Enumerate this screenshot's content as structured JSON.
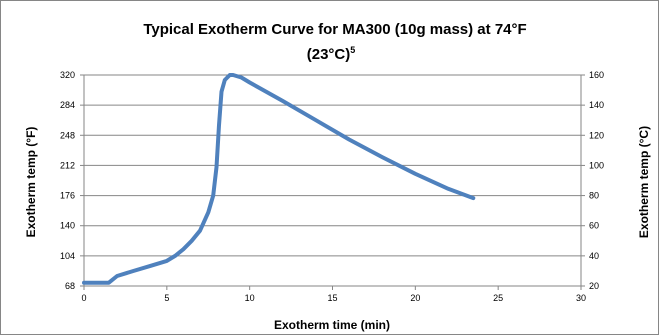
{
  "chart_data": {
    "type": "line",
    "title": "Typical Exotherm Curve for MA300 (10g mass) at 74°F (23°C)",
    "title_line1": "Typical Exotherm Curve for MA300 (10g mass) at 74°F",
    "title_line2": "(23°C)",
    "title_superscript": "5",
    "xlabel": "Exotherm time (min)",
    "ylabel": "Exotherm temp (°F)",
    "y2label": "Exotherm temp (°C)",
    "xlim": [
      0,
      30
    ],
    "ylim": [
      68,
      320
    ],
    "y2lim": [
      20,
      160
    ],
    "x_ticks": [
      "0",
      "5",
      "10",
      "15",
      "20",
      "25",
      "30"
    ],
    "y_ticks": [
      "68",
      "104",
      "140",
      "176",
      "212",
      "248",
      "284",
      "320"
    ],
    "y2_ticks": [
      "20",
      "40",
      "60",
      "80",
      "100",
      "120",
      "140",
      "160"
    ],
    "grid": true,
    "line_color": "#4f81bd",
    "series": [
      {
        "x": [
          0,
          0.5,
          1,
          1.5,
          2,
          3,
          4,
          5,
          5.5,
          6,
          6.5,
          7,
          7.5,
          7.8,
          8,
          8.15,
          8.3,
          8.5,
          8.8,
          9,
          9.5,
          10,
          12,
          14,
          16,
          18,
          20,
          22,
          23.5
        ],
        "y": [
          72,
          72,
          72,
          72,
          80,
          86,
          92,
          98,
          104,
          112,
          122,
          134,
          156,
          176,
          210,
          260,
          300,
          314,
          320,
          320,
          317,
          311,
          289,
          266,
          243,
          222,
          202,
          184,
          173
        ]
      }
    ]
  }
}
